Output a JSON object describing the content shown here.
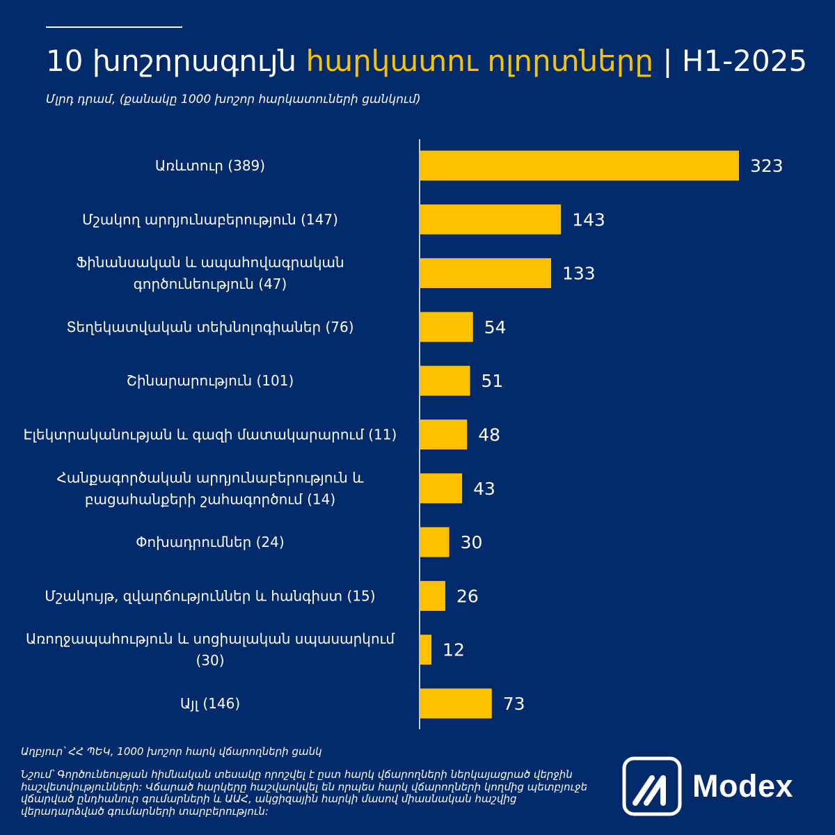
{
  "title": {
    "part1": "10 խոշորագույն",
    "highlight": "հարկատու ոլորտները",
    "part2": "| H1-2025"
  },
  "subtitle": "Մլրդ դրամ, (քանակը 1000 խոշոր հարկատուների ցանկում)",
  "chart_data": {
    "type": "bar",
    "orientation": "horizontal",
    "categories": [
      "Առևտուր (389)",
      "Մշակող արդյունաբերություն (147)",
      "Ֆինանսական և ապահովագրական գործունեություն (47)",
      "Տեղեկատվական տեխնոլոգիաներ  (76)",
      "Շինարարություն (101)",
      "Էլեկտրականության և գազի մատակարարում (11)",
      "Հանքագործական արդյունաբերություն և բացահանքերի շահագործում (14)",
      "Փոխադրումներ (24)",
      "Մշակույթ, զվարճություններ և հանգիստ (15)",
      "Առողջապահություն և  սոցիալական սպասարկում (30)",
      "Այլ (146)"
    ],
    "category_lines": [
      [
        "Առևտուր (389)"
      ],
      [
        "Մշակող արդյունաբերություն (147)"
      ],
      [
        "Ֆինանսական և ապահովագրական",
        "գործունեություն (47)"
      ],
      [
        "Տեղեկատվական տեխնոլոգիաներ  (76)"
      ],
      [
        "Շինարարություն (101)"
      ],
      [
        "Էլեկտրականության և գազի մատակարարում (11)"
      ],
      [
        "Հանքագործական արդյունաբերություն և",
        "բացահանքերի շահագործում (14)"
      ],
      [
        "Փոխադրումներ (24)"
      ],
      [
        "Մշակույթ, զվարճություններ և հանգիստ (15)"
      ],
      [
        "Առողջապահություն և  սոցիալական սպասարկում",
        "(30)"
      ],
      [
        "Այլ (146)"
      ]
    ],
    "values": [
      323,
      143,
      133,
      54,
      51,
      48,
      43,
      30,
      26,
      12,
      73
    ],
    "xlim": [
      0,
      350
    ],
    "grid": false,
    "bar_color": "#ffc000",
    "axis_color": "#ffffff",
    "title": "",
    "xlabel": "",
    "ylabel": ""
  },
  "source": "Աղբյուր՝ ՀՀ ՊԵԿ, 1000 խոշոր հարկ վճարողների ցանկ",
  "note": "Նշում՝ Գործունեության հիմնական տեսակը որոշվել է ըստ հարկ վճարողների ներկայացրած վերջին հաշվետվությունների: Վճարած հարկերը հաշվարկվել են որպես հարկ վճարողների կողմից պետբյուջե վճարված ընդհանուր գումարների և ԱԱՀ, ակցիզային հարկի մասով միասնական հաշվից վերադարձված գումարների տարբերություն:",
  "logo": {
    "text": "Modex",
    "icon": "modex-logo-icon"
  },
  "colors": {
    "background": "#012a6a",
    "accent": "#f6c400"
  }
}
